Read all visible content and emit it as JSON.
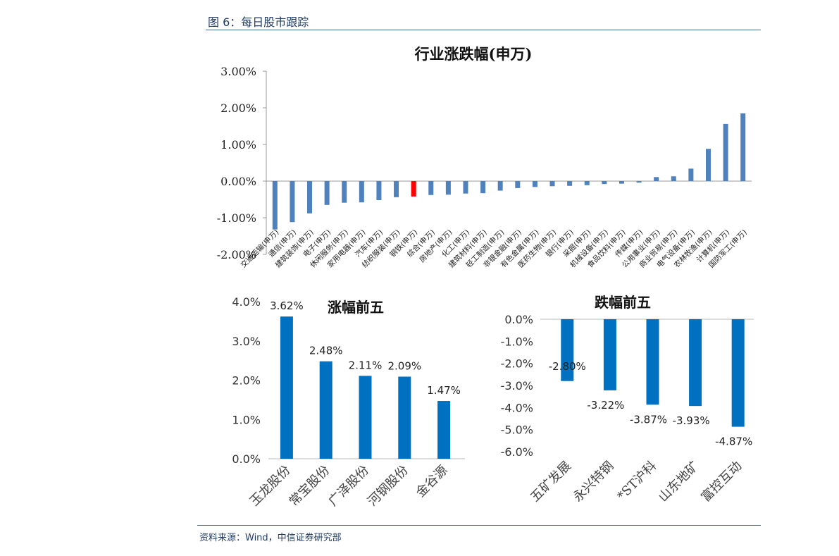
{
  "header": {
    "figure_title": "图 6：每日股市跟踪"
  },
  "footer": {
    "source": "资料来源：Wind，中信证券研究部"
  },
  "colors": {
    "bar": "#4f81bd",
    "highlight": "#ff0000",
    "bar_top": "#0070c0",
    "rule": "#4a6a8f"
  },
  "chart_data": [
    {
      "id": "industry",
      "type": "bar",
      "title": "行业涨跌幅(申万)",
      "categories": [
        "交通运输(申万)",
        "通信(申万)",
        "建筑装饰(申万)",
        "电子(申万)",
        "休闲服务(申万)",
        "家用电器(申万)",
        "汽车(申万)",
        "纺织服装(申万)",
        "钢铁(申万)",
        "综合(申万)",
        "房地产(申万)",
        "化工(申万)",
        "建筑材料(申万)",
        "轻工制造(申万)",
        "非银金融(申万)",
        "有色金属(申万)",
        "医药生物(申万)",
        "银行(申万)",
        "采掘(申万)",
        "机械设备(申万)",
        "食品饮料(申万)",
        "传媒(申万)",
        "公用事业(申万)",
        "商业贸易(申万)",
        "电气设备(申万)",
        "农林牧渔(申万)",
        "计算机(申万)",
        "国防军工(申万)"
      ],
      "values": [
        -1.32,
        -1.12,
        -0.88,
        -0.65,
        -0.59,
        -0.58,
        -0.52,
        -0.44,
        -0.42,
        -0.38,
        -0.37,
        -0.34,
        -0.33,
        -0.26,
        -0.19,
        -0.16,
        -0.14,
        -0.13,
        -0.11,
        -0.08,
        -0.07,
        -0.04,
        0.11,
        0.13,
        0.34,
        0.88,
        1.56,
        1.85
      ],
      "highlight_index": 8,
      "ylim": [
        -2,
        3
      ],
      "yticks": [
        "-2.00%",
        "-1.00%",
        "0.00%",
        "1.00%",
        "2.00%",
        "3.00%"
      ]
    },
    {
      "id": "top5",
      "type": "bar",
      "title": "涨幅前五",
      "categories": [
        "玉龙股份",
        "常宝股份",
        "广泽股份",
        "河钢股份",
        "金谷源"
      ],
      "values": [
        3.62,
        2.48,
        2.11,
        2.09,
        1.47
      ],
      "labels": [
        "3.62%",
        "2.48%",
        "2.11%",
        "2.09%",
        "1.47%"
      ],
      "ylim": [
        0,
        4
      ],
      "yticks": [
        "0.0%",
        "1.0%",
        "2.0%",
        "3.0%",
        "4.0%"
      ]
    },
    {
      "id": "bottom5",
      "type": "bar",
      "title": "跌幅前五",
      "categories": [
        "五矿发展",
        "永兴特钢",
        "*ST沪科",
        "山东地矿",
        "富控互动"
      ],
      "values": [
        -2.8,
        -3.22,
        -3.87,
        -3.93,
        -4.87
      ],
      "labels": [
        "-2.80%",
        "-3.22%",
        "-3.87%",
        "-3.93%",
        "-4.87%"
      ],
      "ylim": [
        -6,
        0
      ],
      "yticks": [
        "0.0%",
        "-1.0%",
        "-2.0%",
        "-3.0%",
        "-4.0%",
        "-5.0%",
        "-6.0%"
      ]
    }
  ]
}
